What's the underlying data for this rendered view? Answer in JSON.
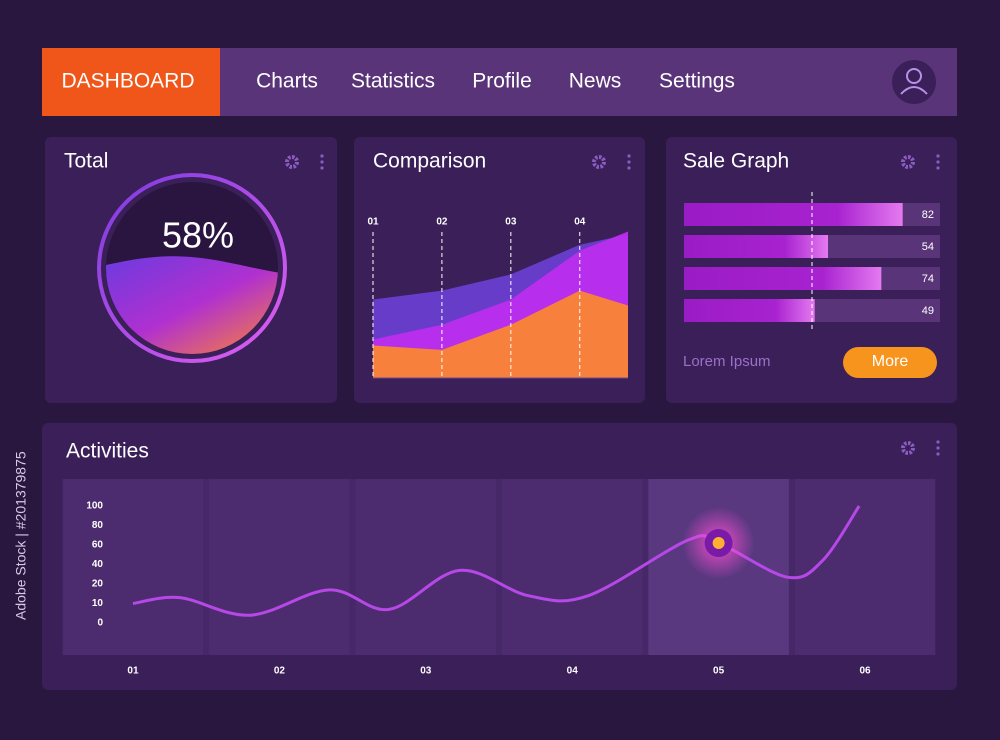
{
  "nav": {
    "brand": "DASHBOARD",
    "items": [
      "Charts",
      "Statistics",
      "Profile",
      "News",
      "Settings"
    ]
  },
  "total": {
    "title": "Total",
    "chart_data": {
      "type": "gauge",
      "value": 58,
      "value_label": "58%",
      "ylim": [
        0,
        100
      ]
    }
  },
  "comparison": {
    "title": "Comparison",
    "chart_data": {
      "type": "area",
      "x": [
        1,
        2,
        3,
        4,
        4.7
      ],
      "xlim": [
        1,
        4.7
      ],
      "xticks": [
        {
          "value": 1,
          "label": "01"
        },
        {
          "value": 2,
          "label": "02"
        },
        {
          "value": 3,
          "label": "03"
        },
        {
          "value": 4,
          "label": "04"
        }
      ],
      "ylim": [
        0,
        100
      ],
      "series": [
        {
          "color": "#6b3fd6",
          "values": [
            53,
            59,
            70,
            90,
            97
          ]
        },
        {
          "color": "#c02cf0",
          "values": [
            26,
            36,
            53,
            86,
            99
          ]
        },
        {
          "color": "#ff8a2a",
          "values": [
            22,
            19,
            36,
            59,
            49
          ]
        }
      ]
    }
  },
  "sale_graph": {
    "title": "Sale Graph",
    "chart_data": {
      "type": "hbar",
      "values": [
        82,
        54,
        74,
        49
      ],
      "xlim": [
        0,
        96
      ],
      "color": "#a21ccc",
      "reference": 48
    },
    "caption": "Lorem Ipsum",
    "button": "More"
  },
  "activities": {
    "title": "Activities",
    "chart_data": {
      "type": "line",
      "x": [
        1,
        1.32,
        1.8,
        2.34,
        2.75,
        3.23,
        3.7,
        4.11,
        4.79,
        5,
        5.47,
        5.71,
        5.96
      ],
      "values": [
        10,
        13,
        4,
        17,
        7,
        34,
        14,
        14,
        65,
        62,
        27,
        44,
        100
      ],
      "xlim": [
        0.57,
        6.43
      ],
      "xticks": [
        {
          "value": 1,
          "label": "01"
        },
        {
          "value": 2,
          "label": "02"
        },
        {
          "value": 3,
          "label": "03"
        },
        {
          "value": 4,
          "label": "04"
        },
        {
          "value": 5,
          "label": "05"
        },
        {
          "value": 6,
          "label": "06"
        }
      ],
      "yticks": [
        0,
        10,
        20,
        40,
        60,
        80,
        100
      ],
      "ylim": [
        0,
        100
      ],
      "color": "#b548e6",
      "highlight": {
        "x": 5,
        "value": 62
      }
    }
  },
  "side_text": "Adobe Stock | #201379875"
}
